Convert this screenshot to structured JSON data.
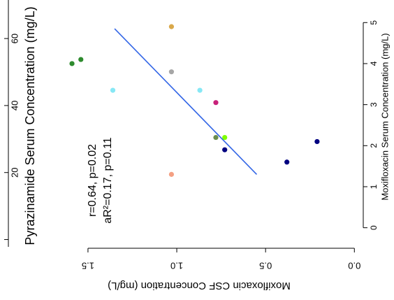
{
  "chart_data": {
    "type": "scatter",
    "orientation": "rotated-180",
    "xlabel": "Moxifloxacin CSF Concentration (mg/L)",
    "ylabel_left": "Pyrazinamide Serum Concentration (mg/L)",
    "ylabel_right": "Moxifloxacin Serum Concentration (mg/L)",
    "xlim": [
      -0.05,
      1.72
    ],
    "x_ticks": [
      {
        "value": 0.0,
        "label": "0.0"
      },
      {
        "value": 0.5,
        "label": "0.5"
      },
      {
        "value": 1.0,
        "label": "1.0"
      },
      {
        "value": 1.5,
        "label": "1.5"
      }
    ],
    "y_right_lim": [
      -0.5,
      5.55
    ],
    "y_right_ticks": [
      {
        "value": 0,
        "label": "0"
      },
      {
        "value": 1,
        "label": "1"
      },
      {
        "value": 2,
        "label": "2"
      },
      {
        "value": 3,
        "label": "3"
      },
      {
        "value": 4,
        "label": "4"
      },
      {
        "value": 5,
        "label": "5"
      }
    ],
    "y_left_lim": [
      -2.6,
      71.5
    ],
    "y_left_ticks": [
      {
        "value": 0,
        "label": ""
      },
      {
        "value": 20,
        "label": "20"
      },
      {
        "value": 40,
        "label": "40"
      },
      {
        "value": 60,
        "label": "60"
      }
    ],
    "points": [
      {
        "x": 1.59,
        "y": 4.0,
        "color": "#2e8b2e"
      },
      {
        "x": 1.54,
        "y": 4.1,
        "color": "#2e8b2e"
      },
      {
        "x": 1.36,
        "y": 3.35,
        "color": "#87e8f5"
      },
      {
        "x": 1.03,
        "y": 4.9,
        "color": "#d9a84a"
      },
      {
        "x": 1.03,
        "y": 3.8,
        "color": "#a6a6a6"
      },
      {
        "x": 1.03,
        "y": 1.3,
        "color": "#f4a083"
      },
      {
        "x": 0.87,
        "y": 3.35,
        "color": "#87e8f5"
      },
      {
        "x": 0.78,
        "y": 3.05,
        "color": "#c8217a"
      },
      {
        "x": 0.78,
        "y": 2.2,
        "color": "#6b8e4e"
      },
      {
        "x": 0.73,
        "y": 2.2,
        "color": "#7fff00"
      },
      {
        "x": 0.73,
        "y": 1.9,
        "color": "#000080"
      },
      {
        "x": 0.38,
        "y": 1.6,
        "color": "#000080"
      },
      {
        "x": 0.21,
        "y": 2.1,
        "color": "#000080"
      }
    ],
    "fit_line": {
      "x": [
        1.35,
        0.55
      ],
      "y": [
        4.85,
        1.3
      ],
      "color": "#3366e6"
    },
    "annotations": [
      {
        "text": "r=0.64, p=0.02"
      },
      {
        "text": "aR²=0.17, p=0.11"
      }
    ]
  }
}
